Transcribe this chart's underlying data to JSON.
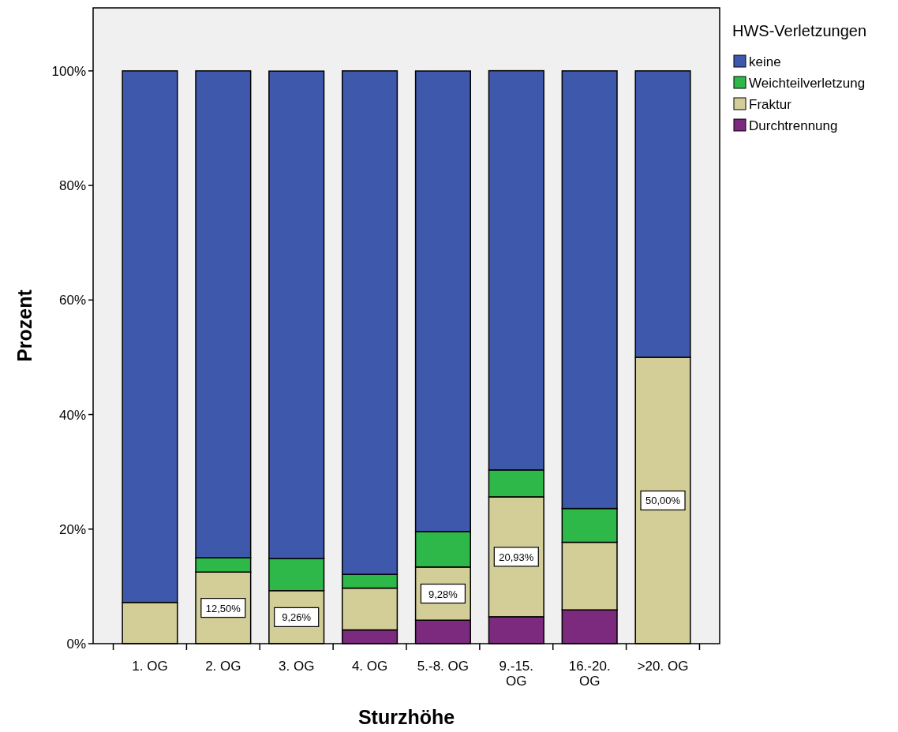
{
  "chart_data": {
    "type": "bar",
    "stacked": true,
    "xlabel": "Sturzhöhe",
    "ylabel": "Prozent",
    "legend_title": "HWS-Verletzungen",
    "legend": "top right",
    "categories": [
      "1. OG",
      "2. OG",
      "3. OG",
      "4. OG",
      "5.-8. OG",
      "9.-15. OG",
      "16.-20. OG",
      ">20. OG"
    ],
    "series": [
      {
        "name": "Durchtrennung",
        "color": "#7b2a7e",
        "values": [
          0,
          0,
          0,
          2.4,
          4.1,
          4.7,
          5.9,
          0
        ]
      },
      {
        "name": "Fraktur",
        "color": "#d3ce97",
        "values": [
          7.2,
          12.5,
          9.26,
          7.3,
          9.28,
          20.93,
          11.8,
          50
        ],
        "value_labels": [
          null,
          "12,50%",
          "9,26%",
          null,
          "9,28%",
          "20,93%",
          null,
          "50,00%"
        ]
      },
      {
        "name": "Weichteilverletzung",
        "color": "#2eb84a",
        "values": [
          0,
          2.5,
          5.6,
          2.4,
          6.2,
          4.7,
          5.9,
          0
        ]
      },
      {
        "name": "keine",
        "color": "#3e58ac",
        "values": [
          92.8,
          85,
          85.1,
          87.9,
          80.4,
          69.7,
          76.4,
          50
        ]
      }
    ],
    "ylim": [
      0,
      111
    ],
    "yticks": [
      {
        "value": 0,
        "label": "0%"
      },
      {
        "value": 20,
        "label": "20%"
      },
      {
        "value": 40,
        "label": "40%"
      },
      {
        "value": 60,
        "label": "60%"
      },
      {
        "value": 80,
        "label": "80%"
      },
      {
        "value": 100,
        "label": "100%"
      }
    ]
  }
}
